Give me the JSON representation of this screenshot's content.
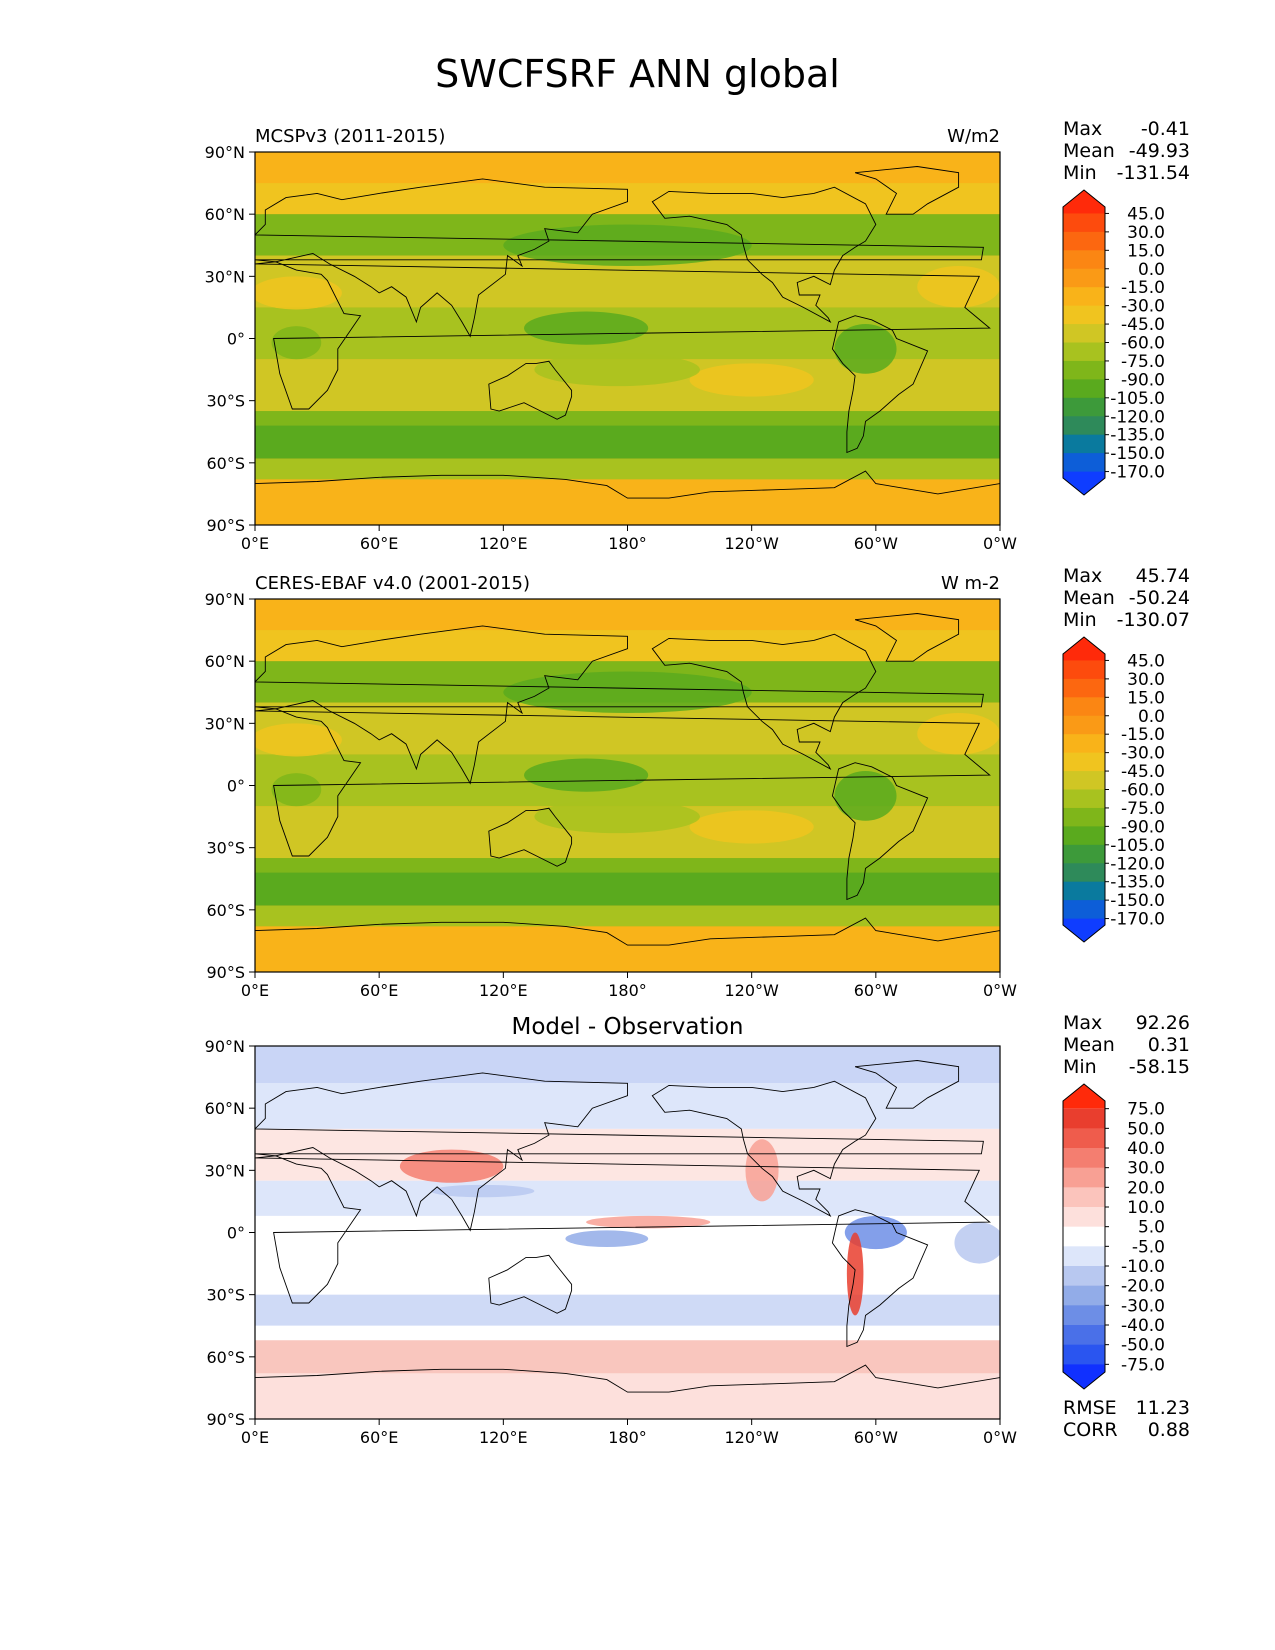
{
  "title": "SWCFSRF ANN global",
  "lat_ticks": [
    "90°N",
    "60°N",
    "30°N",
    "0°",
    "30°S",
    "60°S",
    "90°S"
  ],
  "lon_ticks": [
    "0°E",
    "60°E",
    "120°E",
    "180°",
    "120°W",
    "60°W",
    "0°W"
  ],
  "panels": [
    {
      "left_title": "MCSPv3 (2011-2015)",
      "right_title": "W/m2",
      "center_title": "",
      "stats": [
        {
          "label": "Max",
          "value": "-0.41"
        },
        {
          "label": "Mean",
          "value": "-49.93"
        },
        {
          "label": "Min",
          "value": "-131.54"
        }
      ],
      "colorbar_labels": [
        "45.0",
        "30.0",
        "15.0",
        "0.0",
        "-15.0",
        "-30.0",
        "-45.0",
        "-60.0",
        "-75.0",
        "-90.0",
        "-105.0",
        "-120.0",
        "-135.0",
        "-150.0",
        "-170.0"
      ],
      "colorbar_colors": [
        "#0f3dff",
        "#0d5ed8",
        "#0a7a9e",
        "#2e8a5a",
        "#3d9a3a",
        "#5aaa1e",
        "#7fb61a",
        "#a8c21f",
        "#d0c624",
        "#f0c41f",
        "#f9b319",
        "#fa9a16",
        "#fb8613",
        "#fc6710",
        "#fd4b0d",
        "#ff2a0a"
      ],
      "map_base": "#f4a81e"
    },
    {
      "left_title": "CERES-EBAF v4.0 (2001-2015)",
      "right_title": "W m-2",
      "center_title": "",
      "stats": [
        {
          "label": "Max",
          "value": "45.74"
        },
        {
          "label": "Mean",
          "value": "-50.24"
        },
        {
          "label": "Min",
          "value": "-130.07"
        }
      ],
      "colorbar_labels": [
        "45.0",
        "30.0",
        "15.0",
        "0.0",
        "-15.0",
        "-30.0",
        "-45.0",
        "-60.0",
        "-75.0",
        "-90.0",
        "-105.0",
        "-120.0",
        "-135.0",
        "-150.0",
        "-170.0"
      ],
      "colorbar_colors": [
        "#0f3dff",
        "#0d5ed8",
        "#0a7a9e",
        "#2e8a5a",
        "#3d9a3a",
        "#5aaa1e",
        "#7fb61a",
        "#a8c21f",
        "#d0c624",
        "#f0c41f",
        "#f9b319",
        "#fa9a16",
        "#fb8613",
        "#fc6710",
        "#fd4b0d",
        "#ff2a0a"
      ],
      "map_base": "#f4a81e"
    },
    {
      "left_title": "",
      "right_title": "",
      "center_title": "Model - Observation",
      "stats": [
        {
          "label": "Max",
          "value": "92.26"
        },
        {
          "label": "Mean",
          "value": "0.31"
        },
        {
          "label": "Min",
          "value": "-58.15"
        }
      ],
      "colorbar_labels": [
        "75.0",
        "50.0",
        "40.0",
        "30.0",
        "20.0",
        "10.0",
        "5.0",
        "-5.0",
        "-10.0",
        "-20.0",
        "-30.0",
        "-40.0",
        "-50.0",
        "-75.0"
      ],
      "colorbar_colors": [
        "#1030ff",
        "#2a55f0",
        "#4a70e8",
        "#6d8ee6",
        "#92ace8",
        "#b8c8f0",
        "#dde6fa",
        "#ffffff",
        "#fde0dc",
        "#fbc4bc",
        "#f8a094",
        "#f47e70",
        "#ef5c4c",
        "#e93e2e",
        "#ff2a0a"
      ],
      "map_base": "#ffffff",
      "extra_stats": [
        {
          "label": "RMSE",
          "value": "11.23"
        },
        {
          "label": "CORR",
          "value": "0.88"
        }
      ]
    }
  ]
}
